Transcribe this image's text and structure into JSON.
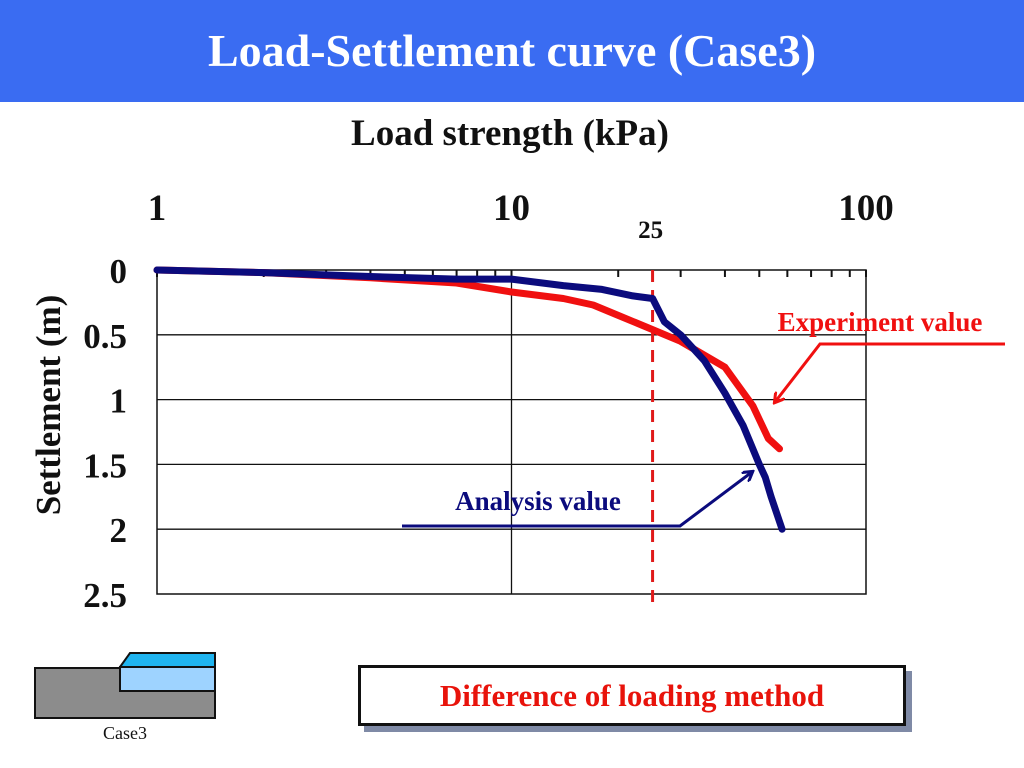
{
  "header": {
    "title": "Load-Settlement curve (Case3)"
  },
  "callout": {
    "text": "Difference of loading method"
  },
  "case_label": "Case3",
  "colors": {
    "title_bar": "#3a6cf2",
    "experiment": "#f01010",
    "analysis": "#0b0b7d",
    "guide": "#e01a1a"
  },
  "chart_data": {
    "type": "line",
    "title": "",
    "xlabel": "Load strength (kPa)",
    "ylabel": "Settlement (m)",
    "x_scale": "log",
    "xlim": [
      1,
      100
    ],
    "ylim": [
      0,
      2.5
    ],
    "y_inverted": true,
    "x_ticks": [
      1,
      10,
      100
    ],
    "x_tick_labels": [
      "1",
      "10",
      "100"
    ],
    "y_ticks": [
      0,
      0.5,
      1,
      1.5,
      2,
      2.5
    ],
    "y_tick_labels": [
      "0",
      "0.5",
      "1",
      "1.5",
      "2",
      "2.5"
    ],
    "grid": "horizontal at y ticks, vertical at x=10",
    "reference_line": {
      "x": 25,
      "label": "25",
      "style": "dashed"
    },
    "series": [
      {
        "name": "Experiment value",
        "x": [
          1,
          2,
          4,
          7,
          10,
          14,
          17,
          20,
          25,
          30,
          40,
          48,
          53,
          57
        ],
        "y": [
          0.0,
          0.02,
          0.06,
          0.1,
          0.17,
          0.22,
          0.27,
          0.35,
          0.46,
          0.55,
          0.75,
          1.05,
          1.3,
          1.38
        ]
      },
      {
        "name": "Analysis value",
        "x": [
          1,
          2,
          4,
          7,
          10,
          14,
          18,
          22,
          25,
          27,
          30,
          35,
          40,
          45,
          50,
          52,
          54,
          58
        ],
        "y": [
          0.0,
          0.02,
          0.05,
          0.07,
          0.07,
          0.12,
          0.15,
          0.2,
          0.22,
          0.4,
          0.5,
          0.7,
          0.95,
          1.2,
          1.5,
          1.6,
          1.75,
          2.0
        ]
      }
    ],
    "annotations": [
      {
        "text": "Experiment value",
        "target_series": "Experiment value"
      },
      {
        "text": "Analysis value",
        "target_series": "Analysis value"
      }
    ]
  }
}
